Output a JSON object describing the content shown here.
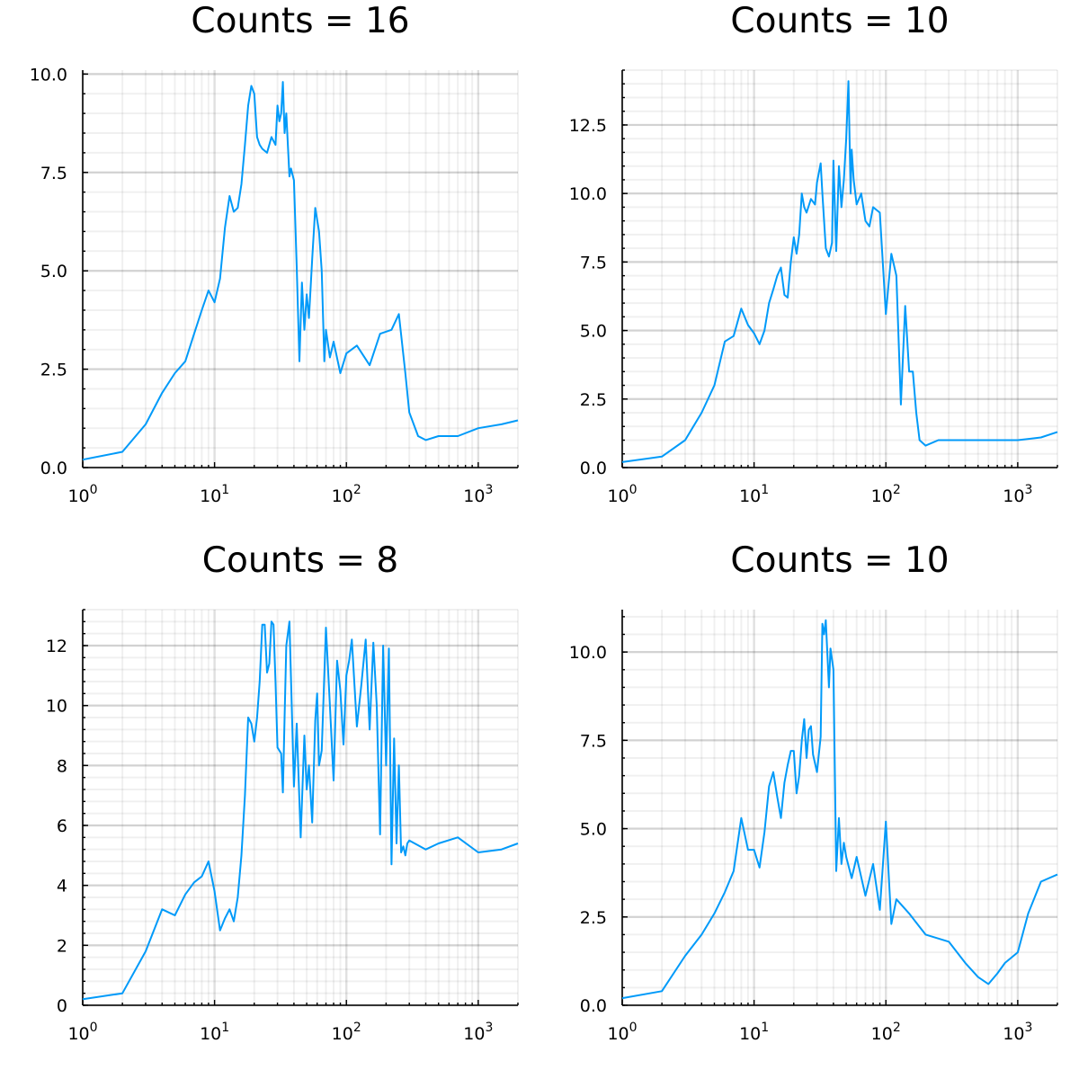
{
  "chart_data": [
    {
      "type": "line",
      "title": "Counts = 16",
      "xscale": "log",
      "xlim": [
        1,
        2000
      ],
      "ylim": [
        0,
        10.1
      ],
      "xticks": [
        1,
        10,
        100,
        1000
      ],
      "yticks": [
        0,
        2.5,
        5,
        7.5,
        10
      ],
      "ytick_labels": [
        "0.0",
        "2.5",
        "5.0",
        "7.5",
        "10.0"
      ],
      "grid": true,
      "legend": "none",
      "color": "#009af9",
      "x": [
        1,
        2,
        3,
        4,
        5,
        6,
        7,
        8,
        9,
        10,
        11,
        12,
        13,
        14,
        15,
        16,
        17,
        18,
        19,
        20,
        21,
        22,
        23,
        25,
        27,
        29,
        30,
        31,
        32,
        33,
        34,
        35,
        37,
        38,
        40,
        42,
        44,
        46,
        48,
        50,
        52,
        55,
        58,
        62,
        65,
        68,
        70,
        75,
        80,
        90,
        100,
        120,
        150,
        180,
        220,
        250,
        280,
        300,
        350,
        400,
        500,
        700,
        1000,
        1500,
        2000
      ],
      "y": [
        0.2,
        0.4,
        1.1,
        1.9,
        2.4,
        2.7,
        3.4,
        4.0,
        4.5,
        4.2,
        4.8,
        6.1,
        6.9,
        6.5,
        6.6,
        7.2,
        8.2,
        9.2,
        9.7,
        9.5,
        8.4,
        8.2,
        8.1,
        8.0,
        8.4,
        8.2,
        9.2,
        8.8,
        9.0,
        9.8,
        8.5,
        9.0,
        7.4,
        7.6,
        7.3,
        5.1,
        2.7,
        4.7,
        3.5,
        4.4,
        3.8,
        5.3,
        6.6,
        6.0,
        5.0,
        2.7,
        3.5,
        2.8,
        3.2,
        2.4,
        2.9,
        3.1,
        2.6,
        3.4,
        3.5,
        3.9,
        2.4,
        1.4,
        0.8,
        0.7,
        0.8,
        0.8,
        1.0,
        1.1,
        1.2
      ]
    },
    {
      "type": "line",
      "title": "Counts = 10",
      "xscale": "log",
      "xlim": [
        1,
        2000
      ],
      "ylim": [
        0,
        14.5
      ],
      "xticks": [
        1,
        10,
        100,
        1000
      ],
      "yticks": [
        0,
        2.5,
        5,
        7.5,
        10,
        12.5
      ],
      "ytick_labels": [
        "0.0",
        "2.5",
        "5.0",
        "7.5",
        "10.0",
        "12.5"
      ],
      "grid": true,
      "legend": "none",
      "color": "#009af9",
      "x": [
        1,
        2,
        3,
        4,
        5,
        6,
        7,
        8,
        9,
        10,
        11,
        12,
        13,
        14,
        15,
        16,
        17,
        18,
        19,
        20,
        21,
        22,
        23,
        24,
        25,
        27,
        29,
        30,
        32,
        33,
        35,
        37,
        39,
        40,
        42,
        44,
        46,
        48,
        50,
        52,
        54,
        55,
        57,
        60,
        65,
        70,
        75,
        80,
        90,
        100,
        110,
        120,
        130,
        140,
        150,
        160,
        170,
        180,
        190,
        200,
        250,
        300,
        500,
        1000,
        1500,
        2000
      ],
      "y": [
        0.2,
        0.4,
        1.0,
        2.0,
        3.0,
        4.6,
        4.8,
        5.8,
        5.2,
        4.9,
        4.5,
        5.0,
        6.0,
        6.5,
        7.0,
        7.3,
        6.3,
        6.2,
        7.5,
        8.4,
        7.8,
        8.5,
        10.0,
        9.5,
        9.3,
        9.8,
        9.6,
        10.4,
        11.1,
        10.0,
        8.0,
        7.7,
        8.2,
        11.2,
        7.9,
        11.0,
        9.5,
        10.5,
        12.0,
        14.1,
        10.0,
        11.6,
        10.5,
        9.6,
        10.0,
        9.0,
        8.8,
        9.5,
        9.3,
        5.6,
        7.8,
        7.0,
        2.3,
        5.9,
        3.5,
        3.5,
        2.0,
        1.0,
        0.9,
        0.8,
        1.0,
        1.0,
        1.0,
        1.0,
        1.1,
        1.3
      ]
    },
    {
      "type": "line",
      "title": "Counts = 8",
      "xscale": "log",
      "xlim": [
        1,
        2000
      ],
      "ylim": [
        0,
        13.2
      ],
      "xticks": [
        1,
        10,
        100,
        1000
      ],
      "yticks": [
        0,
        2,
        4,
        6,
        8,
        10,
        12
      ],
      "ytick_labels": [
        "0",
        "2",
        "4",
        "6",
        "8",
        "10",
        "12"
      ],
      "grid": true,
      "legend": "none",
      "color": "#009af9",
      "x": [
        1,
        2,
        3,
        4,
        5,
        6,
        7,
        8,
        9,
        10,
        11,
        12,
        13,
        14,
        15,
        16,
        17,
        18,
        19,
        20,
        21,
        22,
        23,
        24,
        25,
        26,
        27,
        28,
        29,
        30,
        32,
        33,
        34,
        35,
        37,
        40,
        42,
        45,
        48,
        50,
        52,
        55,
        58,
        60,
        62,
        65,
        70,
        75,
        80,
        85,
        90,
        95,
        100,
        105,
        110,
        120,
        130,
        140,
        150,
        160,
        170,
        180,
        190,
        200,
        210,
        220,
        230,
        240,
        250,
        260,
        270,
        280,
        290,
        300,
        400,
        500,
        700,
        1000,
        1500,
        2000
      ],
      "y": [
        0.2,
        0.4,
        1.8,
        3.2,
        3.0,
        3.7,
        4.1,
        4.3,
        4.8,
        3.8,
        2.5,
        2.9,
        3.2,
        2.8,
        3.6,
        5.0,
        7.0,
        9.6,
        9.4,
        8.8,
        9.6,
        10.8,
        12.7,
        12.7,
        11.1,
        11.4,
        12.8,
        12.7,
        10.8,
        8.6,
        8.4,
        7.1,
        9.6,
        12.0,
        12.8,
        7.3,
        9.4,
        5.6,
        9.0,
        7.2,
        8.0,
        6.1,
        9.5,
        10.4,
        8.0,
        8.5,
        12.6,
        10.0,
        7.5,
        11.5,
        10.5,
        8.7,
        11.0,
        11.5,
        12.2,
        9.3,
        10.7,
        12.2,
        9.2,
        12.1,
        10.0,
        5.7,
        12.0,
        8.0,
        11.9,
        4.7,
        8.9,
        5.4,
        8.0,
        5.1,
        5.3,
        5.0,
        5.4,
        5.5,
        5.2,
        5.4,
        5.6,
        5.1,
        5.2,
        5.4
      ]
    },
    {
      "type": "line",
      "title": "Counts = 10",
      "xscale": "log",
      "xlim": [
        1,
        2000
      ],
      "ylim": [
        0,
        11.2
      ],
      "xticks": [
        1,
        10,
        100,
        1000
      ],
      "yticks": [
        0,
        2.5,
        5,
        7.5,
        10
      ],
      "ytick_labels": [
        "0.0",
        "2.5",
        "5.0",
        "7.5",
        "10.0"
      ],
      "grid": true,
      "legend": "none",
      "color": "#009af9",
      "x": [
        1,
        2,
        3,
        4,
        5,
        6,
        7,
        8,
        9,
        10,
        11,
        12,
        13,
        14,
        15,
        16,
        17,
        18,
        19,
        20,
        21,
        22,
        23,
        24,
        25,
        26,
        27,
        28,
        30,
        32,
        33,
        34,
        35,
        37,
        38,
        40,
        42,
        44,
        46,
        48,
        50,
        55,
        60,
        70,
        80,
        90,
        100,
        110,
        120,
        150,
        200,
        300,
        400,
        500,
        600,
        700,
        800,
        1000,
        1200,
        1500,
        2000
      ],
      "y": [
        0.2,
        0.4,
        1.4,
        2.0,
        2.6,
        3.2,
        3.8,
        5.3,
        4.4,
        4.4,
        3.9,
        4.9,
        6.2,
        6.6,
        5.9,
        5.3,
        6.3,
        6.8,
        7.2,
        7.2,
        6.0,
        6.5,
        7.5,
        8.1,
        7.0,
        7.8,
        7.9,
        7.1,
        6.6,
        7.6,
        10.8,
        10.5,
        10.9,
        9.0,
        10.1,
        9.5,
        3.8,
        5.3,
        4.0,
        4.6,
        4.2,
        3.6,
        4.2,
        3.1,
        4.0,
        2.7,
        5.2,
        2.3,
        3.0,
        2.6,
        2.0,
        1.8,
        1.2,
        0.8,
        0.6,
        0.9,
        1.2,
        1.5,
        2.6,
        3.5,
        3.7
      ]
    }
  ]
}
